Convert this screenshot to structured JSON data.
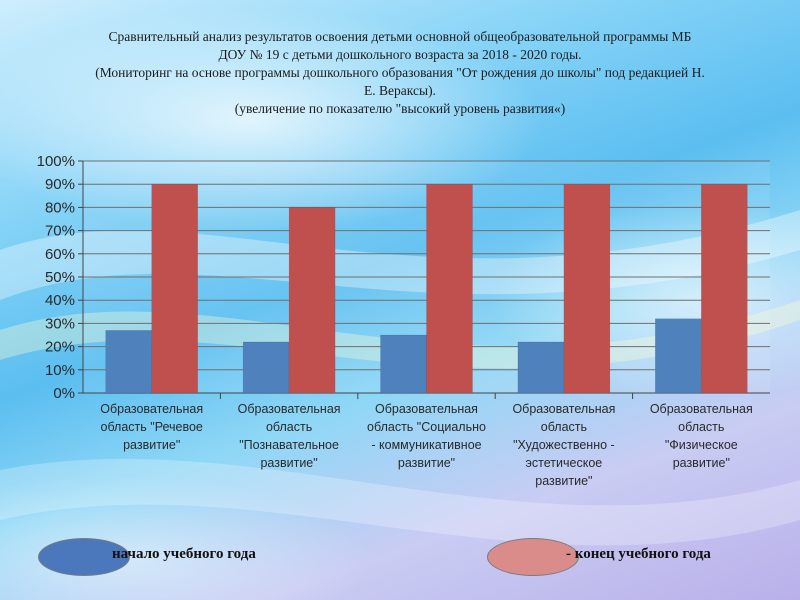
{
  "title_lines": [
    "Сравнительный анализ результатов освоения детьми основной общеобразовательной программы МБ",
    "ДОУ № 19 с детьми дошкольного возраста  за 2018 - 2020 годы.",
    "(Мониторинг на основе программы дошкольного образования \"От рождения до школы\" под редакцией Н.",
    "Е. Вераксы).",
    "(увеличение по показателю \"высокий уровень развития«)"
  ],
  "legend": {
    "start_label": "начало учебного года",
    "end_label": "- конец учебного года"
  },
  "colors": {
    "start": "#4f81bd",
    "end": "#c0504d",
    "legend_start": "#4b77bd",
    "legend_end": "#d98c8a"
  },
  "chart_data": {
    "type": "bar",
    "categories": [
      [
        "Образовательная",
        "область \"Речевое",
        "развитие\""
      ],
      [
        "Образовательная",
        "область",
        "\"Познавательное",
        "развитие\""
      ],
      [
        "Образовательная",
        "область \"Социально",
        "- коммуникативное",
        "развитие\""
      ],
      [
        "Образовательная",
        "область",
        "\"Художественно -",
        "эстетическое",
        "развитие\""
      ],
      [
        "Образовательная",
        "область",
        "\"Физическое",
        "развитие\""
      ]
    ],
    "series": [
      {
        "name": "начало учебного года",
        "values": [
          27,
          22,
          25,
          22,
          32
        ]
      },
      {
        "name": "конец учебного года",
        "values": [
          90,
          80,
          90,
          90,
          90
        ]
      }
    ],
    "ylim": [
      0,
      100
    ],
    "yticks": [
      "0%",
      "10%",
      "20%",
      "30%",
      "40%",
      "50%",
      "60%",
      "70%",
      "80%",
      "90%",
      "100%"
    ],
    "grid": true,
    "legend_position": "bottom"
  }
}
